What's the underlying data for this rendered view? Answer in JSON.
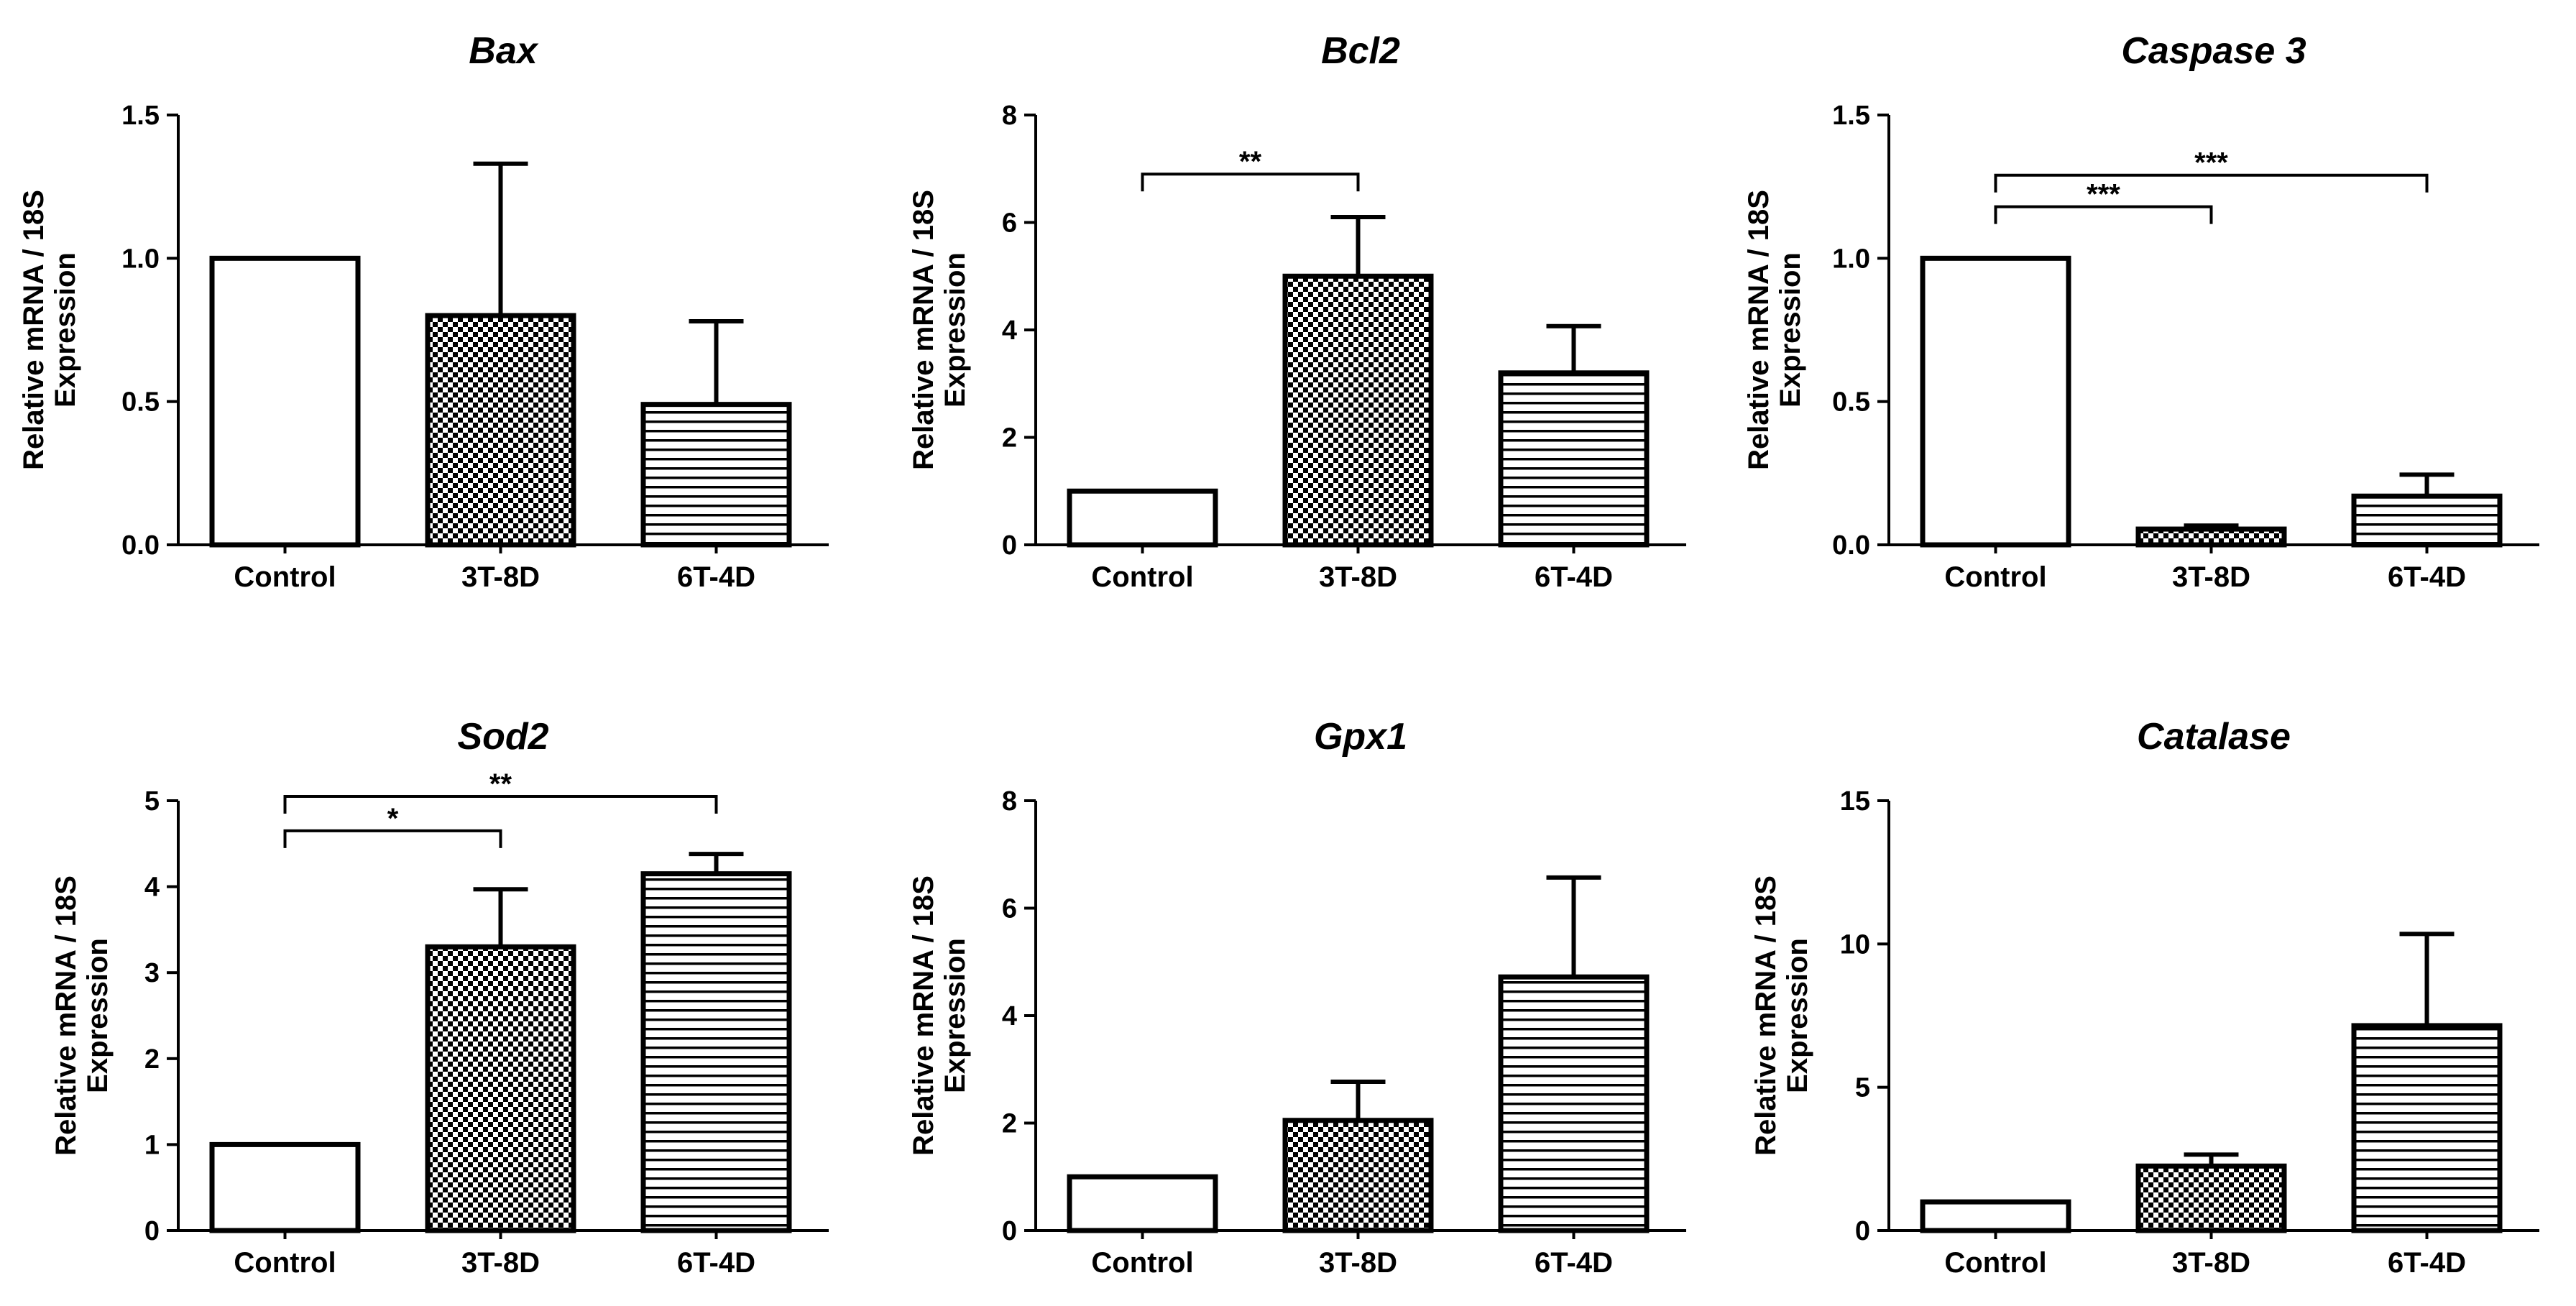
{
  "figure": {
    "ylabel_line1": "Relative mRNA / 18S",
    "ylabel_line2": "Expression",
    "categories": [
      "Control",
      "3T-8D",
      "6T-4D"
    ],
    "patterns": [
      "open",
      "checker",
      "horizontal-lines"
    ]
  },
  "chart_data": [
    {
      "type": "bar",
      "title": "Bax",
      "categories": [
        "Control",
        "3T-8D",
        "6T-4D"
      ],
      "values": [
        1.0,
        0.8,
        0.49
      ],
      "errors": [
        0.0,
        0.53,
        0.29
      ],
      "ylim": [
        0,
        1.5
      ],
      "yticks": [
        0.0,
        0.5,
        1.0,
        1.5
      ],
      "tick_labels": [
        "0.0",
        "0.5",
        "1.0",
        "1.5"
      ],
      "xlabel": "",
      "ylabel": "Relative mRNA / 18S Expression",
      "significance": []
    },
    {
      "type": "bar",
      "title": "Bcl2",
      "categories": [
        "Control",
        "3T-8D",
        "6T-4D"
      ],
      "values": [
        1.0,
        5.0,
        3.2
      ],
      "errors": [
        0.0,
        1.1,
        0.87
      ],
      "ylim": [
        0,
        8
      ],
      "yticks": [
        0,
        2,
        4,
        6,
        8
      ],
      "tick_labels": [
        "0",
        "2",
        "4",
        "6",
        "8"
      ],
      "xlabel": "",
      "ylabel": "Relative mRNA / 18S Expression",
      "significance": [
        {
          "from": 0,
          "to": 1,
          "label": "**",
          "y": 6.9
        }
      ]
    },
    {
      "type": "bar",
      "title": "Caspase 3",
      "categories": [
        "Control",
        "3T-8D",
        "6T-4D"
      ],
      "values": [
        1.0,
        0.055,
        0.17
      ],
      "errors": [
        0.0,
        0.012,
        0.075
      ],
      "ylim": [
        0,
        1.5
      ],
      "yticks": [
        0.0,
        0.5,
        1.0,
        1.5
      ],
      "tick_labels": [
        "0.0",
        "0.5",
        "1.0",
        "1.5"
      ],
      "xlabel": "",
      "ylabel": "Relative mRNA / 18S Expression",
      "significance": [
        {
          "from": 0,
          "to": 1,
          "label": "***",
          "y": 1.18
        },
        {
          "from": 0,
          "to": 2,
          "label": "***",
          "y": 1.29
        }
      ]
    },
    {
      "type": "bar",
      "title": "Sod2",
      "categories": [
        "Control",
        "3T-8D",
        "6T-4D"
      ],
      "values": [
        1.0,
        3.3,
        4.15
      ],
      "errors": [
        0.0,
        0.67,
        0.23
      ],
      "ylim": [
        0,
        5
      ],
      "yticks": [
        0,
        1,
        2,
        3,
        4,
        5
      ],
      "tick_labels": [
        "0",
        "1",
        "2",
        "3",
        "4",
        "5"
      ],
      "xlabel": "",
      "ylabel": "Relative mRNA / 18S Expression",
      "significance": [
        {
          "from": 0,
          "to": 1,
          "label": "*",
          "y": 4.65
        },
        {
          "from": 0,
          "to": 2,
          "label": "**",
          "y": 5.05
        }
      ]
    },
    {
      "type": "bar",
      "title": "Gpx1",
      "categories": [
        "Control",
        "3T-8D",
        "6T-4D"
      ],
      "values": [
        1.0,
        2.05,
        4.72
      ],
      "errors": [
        0.0,
        0.72,
        1.85
      ],
      "ylim": [
        0,
        8
      ],
      "yticks": [
        0,
        2,
        4,
        6,
        8
      ],
      "tick_labels": [
        "0",
        "2",
        "4",
        "6",
        "8"
      ],
      "xlabel": "",
      "ylabel": "Relative mRNA / 18S Expression",
      "significance": []
    },
    {
      "type": "bar",
      "title": "Catalase",
      "categories": [
        "Control",
        "3T-8D",
        "6T-4D"
      ],
      "values": [
        1.0,
        2.25,
        7.15
      ],
      "errors": [
        0.0,
        0.4,
        3.2
      ],
      "ylim": [
        0,
        15
      ],
      "yticks": [
        0,
        5,
        10,
        15
      ],
      "tick_labels": [
        "0",
        "5",
        "10",
        "15"
      ],
      "xlabel": "",
      "ylabel": "Relative mRNA / 18S Expression",
      "significance": []
    }
  ]
}
